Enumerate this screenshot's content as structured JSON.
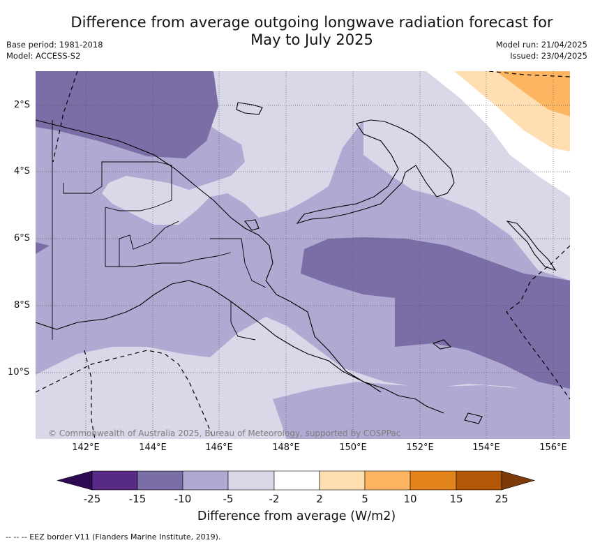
{
  "title": "Difference from average outgoing longwave radiation forecast for May to July 2025",
  "base_period": "Base period: 1981-2018",
  "model": "Model: ACCESS-S2",
  "model_run": "Model run: 21/04/2025",
  "issued": "Issued: 23/04/2025",
  "lon_labels": [
    "142°E",
    "144°E",
    "146°E",
    "148°E",
    "150°E",
    "152°E",
    "154°E",
    "156°E"
  ],
  "lat_labels": [
    "2°S",
    "4°S",
    "6°S",
    "8°S",
    "10°S"
  ],
  "copyright": "© Commonwealth of Australia 2025, Bureau of Meteorology, supported by COSPPac",
  "colorbar": {
    "ticks": [
      "-25",
      "-15",
      "-10",
      "-5",
      "-2",
      "2",
      "5",
      "10",
      "15",
      "25"
    ],
    "colors": [
      "#2d0a52",
      "#572a85",
      "#7b6ea7",
      "#b0a9d2",
      "#d8d8e9",
      "#ffffff",
      "#ffdfb2",
      "#fdb561",
      "#e3831b",
      "#b25607",
      "#7b3a08"
    ],
    "label": "Difference from average (W/m2)"
  },
  "footer": "-- -- -- EEZ border V11 (Flanders Marine Institute, 2019)."
}
